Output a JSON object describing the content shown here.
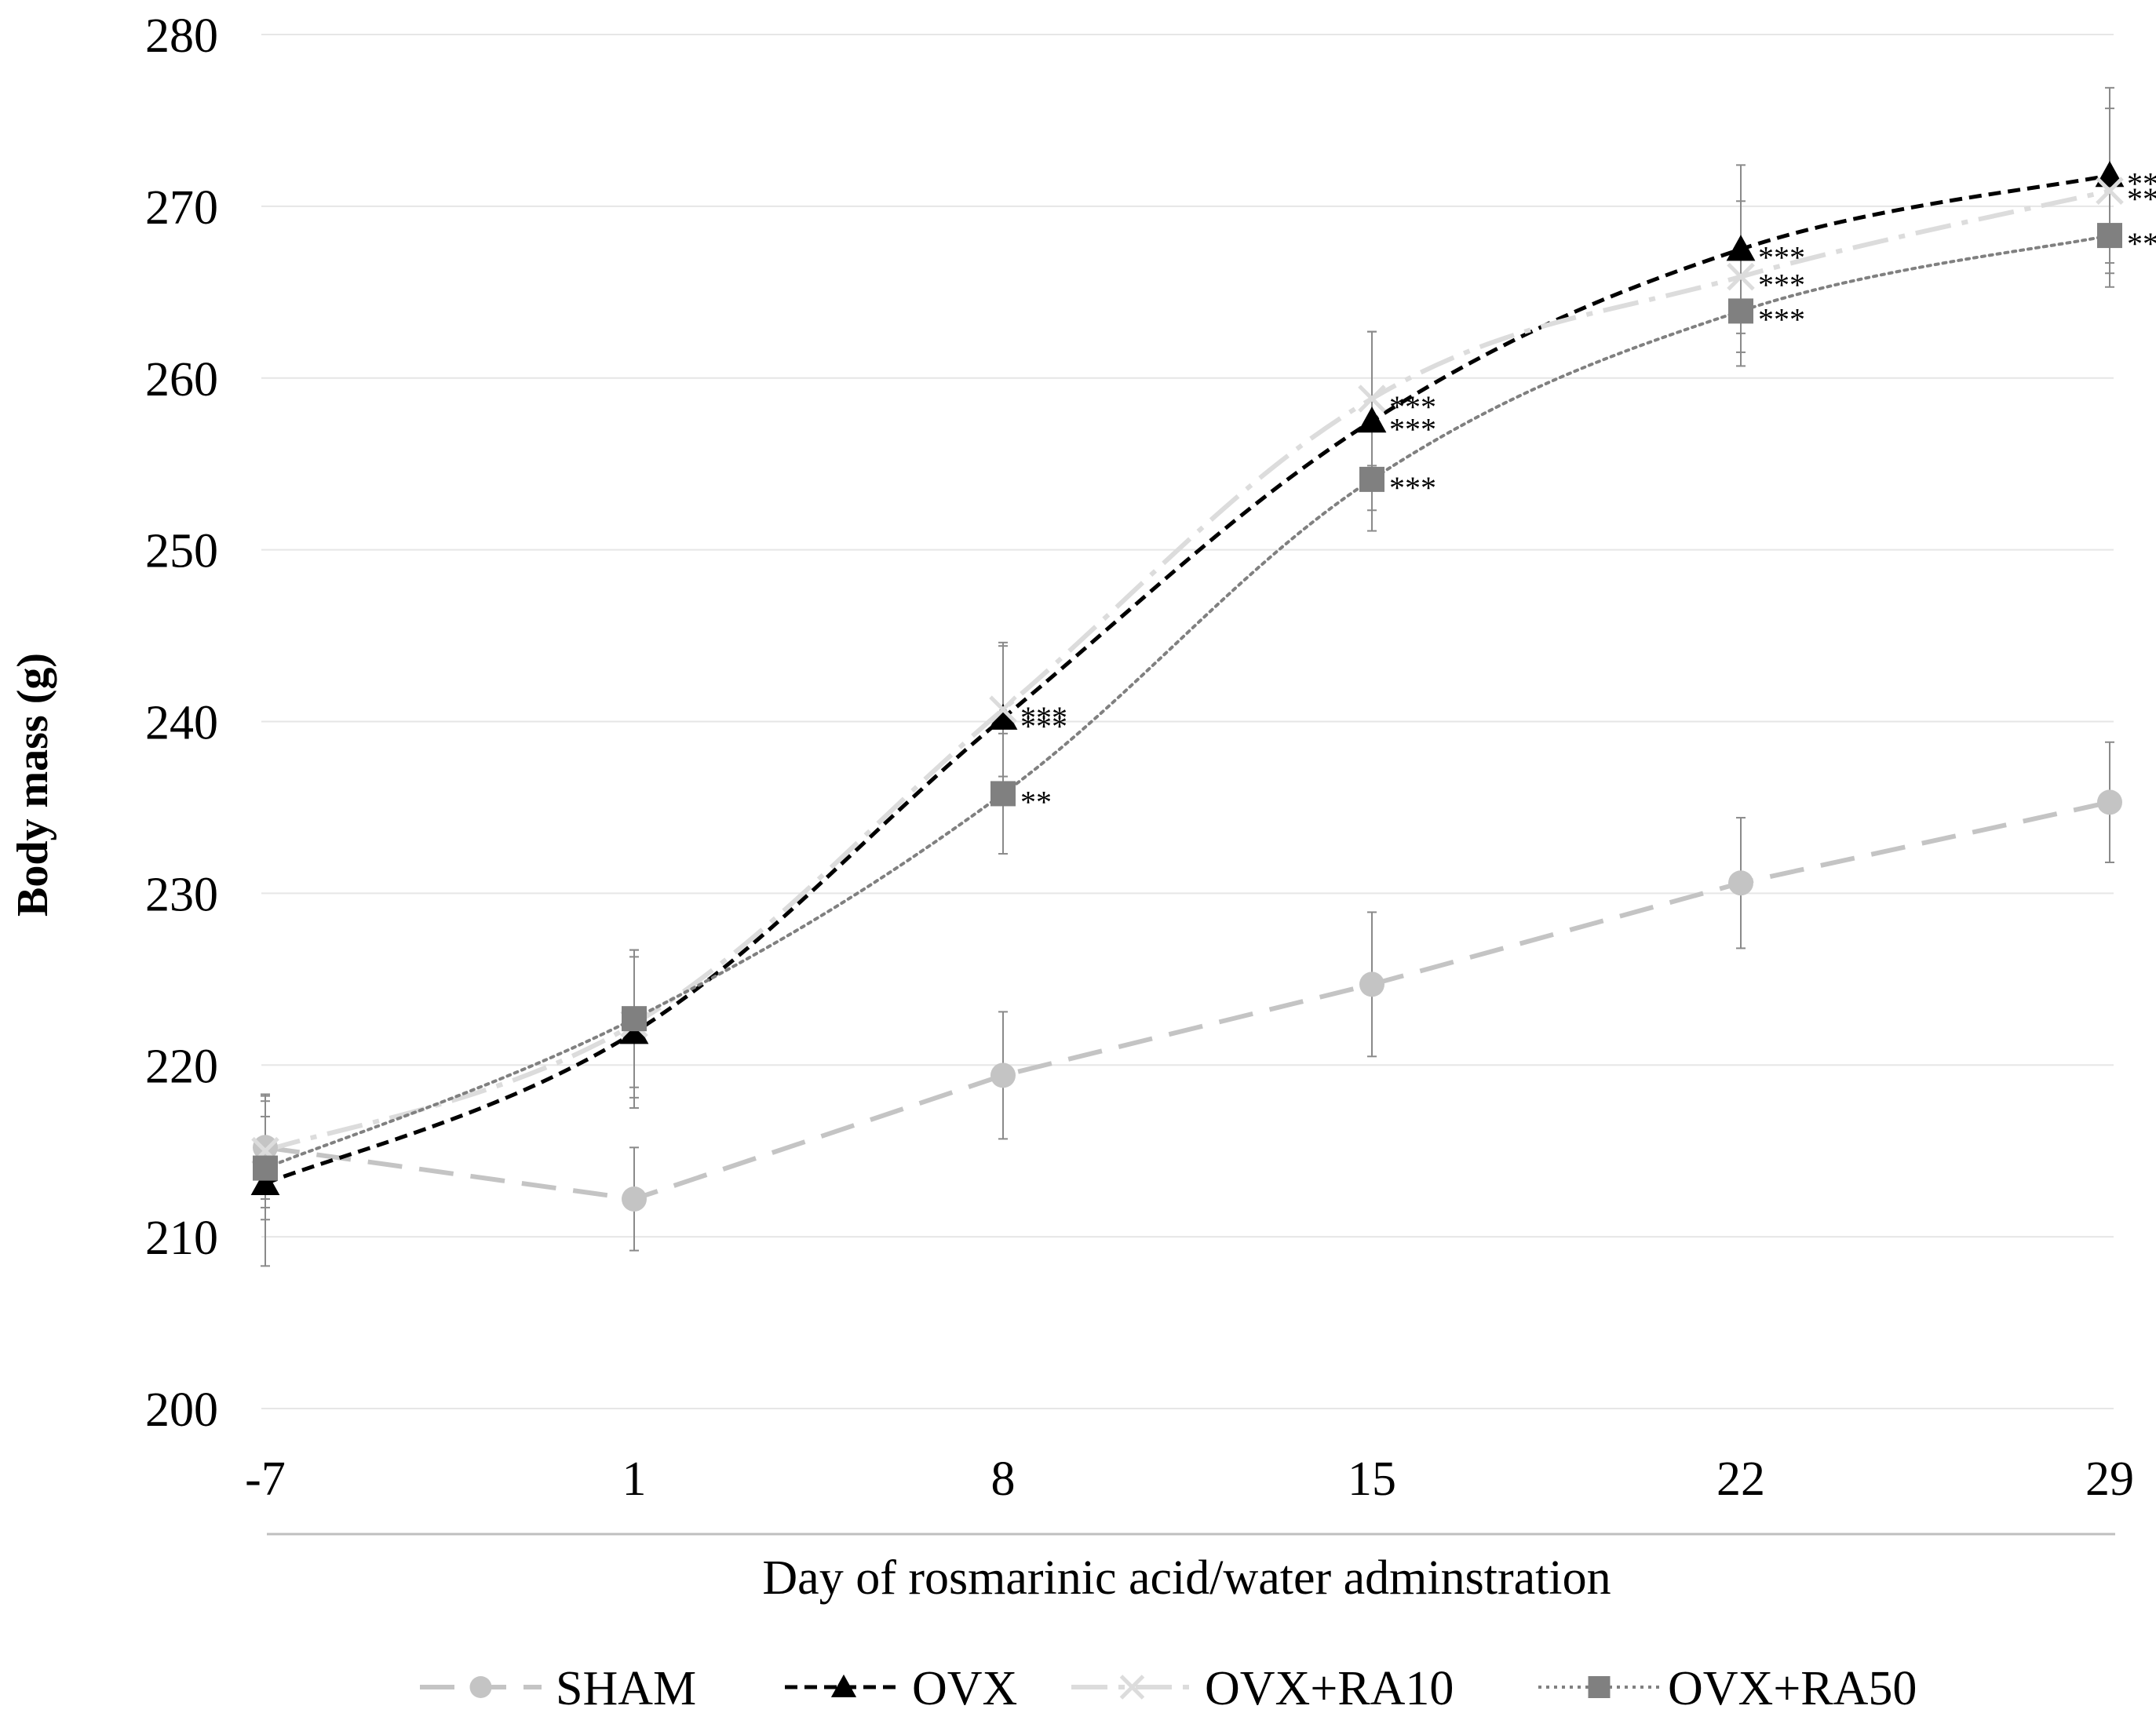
{
  "chart_data": {
    "type": "line",
    "title": "",
    "xlabel": "Day of rosmarinic acid/water adminstration",
    "ylabel": "Body mass (g)",
    "categories": [
      "-7",
      "1",
      "8",
      "15",
      "22",
      "29"
    ],
    "ylim": [
      200,
      280
    ],
    "yticks": [
      200,
      210,
      220,
      230,
      240,
      250,
      260,
      270,
      280
    ],
    "grid": true,
    "legend_position": "bottom",
    "series": [
      {
        "name": "SHAM",
        "values": [
          215.2,
          212.2,
          219.4,
          224.7,
          230.6,
          235.3
        ],
        "errors": [
          3.0,
          3.0,
          3.7,
          4.2,
          3.8,
          3.5
        ],
        "stars": [
          "",
          "",
          "",
          "",
          "",
          ""
        ],
        "color": "#c4c4c4",
        "marker": "circle",
        "dash": "dashed"
      },
      {
        "name": "OVX",
        "values": [
          213.1,
          221.9,
          240.2,
          257.5,
          267.5,
          271.8
        ],
        "errors": [
          4.8,
          4.4,
          4.2,
          5.2,
          4.9,
          5.1
        ],
        "stars": [
          "",
          "",
          "***",
          "***",
          "***",
          "***"
        ],
        "color": "#000000",
        "marker": "triangle",
        "dash": "shortdash"
      },
      {
        "name": "OVX+RA10",
        "values": [
          215.0,
          222.4,
          240.7,
          258.8,
          265.9,
          270.9
        ],
        "errors": [
          3.3,
          4.3,
          3.9,
          3.9,
          4.4,
          4.8
        ],
        "stars": [
          "",
          "",
          "***",
          "***",
          "***",
          "***"
        ],
        "color": "#dcdcdc",
        "marker": "x",
        "dash": "dashdot"
      },
      {
        "name": "OVX+RA50",
        "values": [
          214.0,
          222.7,
          235.8,
          254.1,
          263.9,
          268.3
        ],
        "errors": [
          3.0,
          4.0,
          3.5,
          3.0,
          3.2,
          3.0
        ],
        "stars": [
          "",
          "",
          "**",
          "***",
          "***",
          "***"
        ],
        "color": "#808080",
        "marker": "square",
        "dash": "dotted"
      }
    ]
  }
}
